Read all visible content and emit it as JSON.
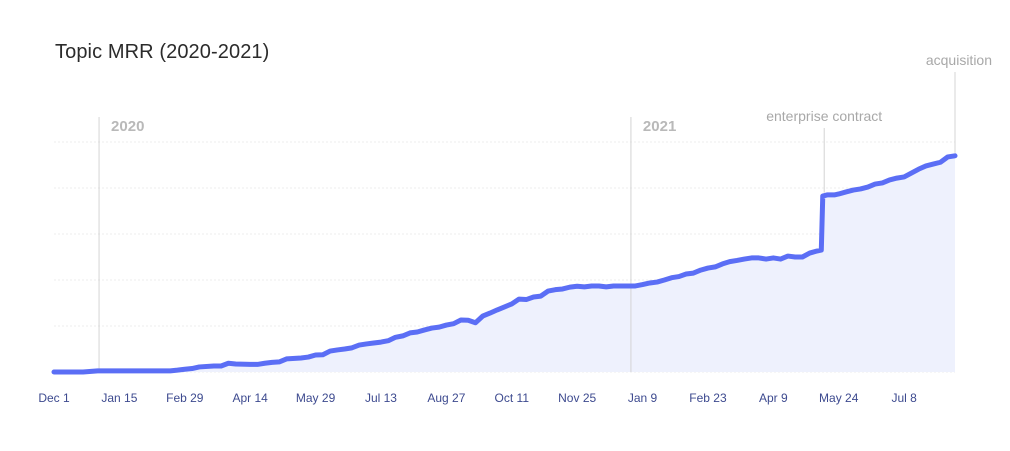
{
  "chart_data": {
    "type": "area",
    "title": "Topic MRR (2020-2021)",
    "xlabel": "",
    "ylabel": "",
    "x_ticks": [
      "Dec 1",
      "Jan 15",
      "Feb 29",
      "Apr 14",
      "May 29",
      "Jul 13",
      "Aug 27",
      "Oct 11",
      "Nov 25",
      "Jan 9",
      "Feb 23",
      "Apr 9",
      "May 24",
      "Jul 8"
    ],
    "x_tick_days": [
      0,
      45,
      90,
      135,
      180,
      225,
      270,
      315,
      360,
      405,
      450,
      495,
      540,
      585
    ],
    "xlim_days": [
      0,
      620
    ],
    "ylim": [
      0,
      100
    ],
    "grid": true,
    "y_axis_labels_visible": false,
    "annotations": [
      {
        "label": "2020",
        "day": 31,
        "style": "year-marker"
      },
      {
        "label": "2021",
        "day": 397,
        "style": "year-marker"
      },
      {
        "label": "enterprise contract",
        "day": 530,
        "style": "event"
      },
      {
        "label": "acquisition",
        "day": 620,
        "style": "event"
      }
    ],
    "series": [
      {
        "name": "MRR",
        "color": "#5b6ef5",
        "fill": "#eef1fd",
        "points": [
          [
            0,
            0.0
          ],
          [
            10,
            0.0
          ],
          [
            20,
            0.0
          ],
          [
            30,
            0.5
          ],
          [
            40,
            0.5
          ],
          [
            50,
            0.5
          ],
          [
            60,
            0.5
          ],
          [
            70,
            0.5
          ],
          [
            80,
            0.5
          ],
          [
            85,
            0.8
          ],
          [
            90,
            1.2
          ],
          [
            95,
            1.5
          ],
          [
            100,
            2.2
          ],
          [
            110,
            2.6
          ],
          [
            115,
            2.6
          ],
          [
            120,
            3.8
          ],
          [
            125,
            3.5
          ],
          [
            135,
            3.3
          ],
          [
            140,
            3.3
          ],
          [
            145,
            3.8
          ],
          [
            150,
            4.2
          ],
          [
            155,
            4.4
          ],
          [
            160,
            5.7
          ],
          [
            170,
            6.1
          ],
          [
            175,
            6.5
          ],
          [
            180,
            7.4
          ],
          [
            185,
            7.5
          ],
          [
            190,
            9.1
          ],
          [
            195,
            9.6
          ],
          [
            200,
            10.0
          ],
          [
            205,
            10.5
          ],
          [
            210,
            11.7
          ],
          [
            215,
            12.2
          ],
          [
            220,
            12.6
          ],
          [
            225,
            13.0
          ],
          [
            230,
            13.6
          ],
          [
            235,
            15.1
          ],
          [
            240,
            15.7
          ],
          [
            245,
            17.0
          ],
          [
            250,
            17.4
          ],
          [
            255,
            18.3
          ],
          [
            260,
            19.1
          ],
          [
            265,
            19.5
          ],
          [
            270,
            20.4
          ],
          [
            275,
            21.0
          ],
          [
            280,
            22.6
          ],
          [
            285,
            22.5
          ],
          [
            290,
            21.4
          ],
          [
            295,
            24.3
          ],
          [
            300,
            25.6
          ],
          [
            305,
            27.0
          ],
          [
            310,
            28.3
          ],
          [
            315,
            29.6
          ],
          [
            320,
            31.7
          ],
          [
            325,
            31.5
          ],
          [
            330,
            32.6
          ],
          [
            335,
            33.0
          ],
          [
            340,
            35.2
          ],
          [
            345,
            35.8
          ],
          [
            350,
            36.1
          ],
          [
            355,
            36.9
          ],
          [
            360,
            37.3
          ],
          [
            365,
            37.0
          ],
          [
            370,
            37.4
          ],
          [
            375,
            37.4
          ],
          [
            380,
            37.0
          ],
          [
            385,
            37.4
          ],
          [
            390,
            37.4
          ],
          [
            395,
            37.4
          ],
          [
            400,
            37.4
          ],
          [
            405,
            38.0
          ],
          [
            410,
            38.7
          ],
          [
            415,
            39.1
          ],
          [
            420,
            40.0
          ],
          [
            425,
            41.0
          ],
          [
            430,
            41.5
          ],
          [
            435,
            42.6
          ],
          [
            440,
            43.0
          ],
          [
            445,
            44.3
          ],
          [
            450,
            45.2
          ],
          [
            455,
            45.7
          ],
          [
            460,
            47.0
          ],
          [
            465,
            48.0
          ],
          [
            470,
            48.5
          ],
          [
            475,
            49.1
          ],
          [
            480,
            49.6
          ],
          [
            485,
            49.6
          ],
          [
            490,
            49.1
          ],
          [
            495,
            49.6
          ],
          [
            500,
            49.1
          ],
          [
            505,
            50.4
          ],
          [
            510,
            50.0
          ],
          [
            515,
            50.0
          ],
          [
            520,
            51.7
          ],
          [
            525,
            52.6
          ],
          [
            528,
            53.0
          ],
          [
            529,
            76.5
          ],
          [
            532,
            77.0
          ],
          [
            537,
            77.0
          ],
          [
            540,
            77.4
          ],
          [
            545,
            78.3
          ],
          [
            550,
            79.1
          ],
          [
            555,
            79.6
          ],
          [
            560,
            80.4
          ],
          [
            565,
            81.7
          ],
          [
            570,
            82.2
          ],
          [
            575,
            83.5
          ],
          [
            580,
            84.3
          ],
          [
            585,
            84.8
          ],
          [
            590,
            86.5
          ],
          [
            595,
            88.2
          ],
          [
            600,
            89.6
          ],
          [
            605,
            90.4
          ],
          [
            610,
            91.2
          ],
          [
            615,
            93.5
          ],
          [
            620,
            94.0
          ]
        ]
      }
    ]
  }
}
